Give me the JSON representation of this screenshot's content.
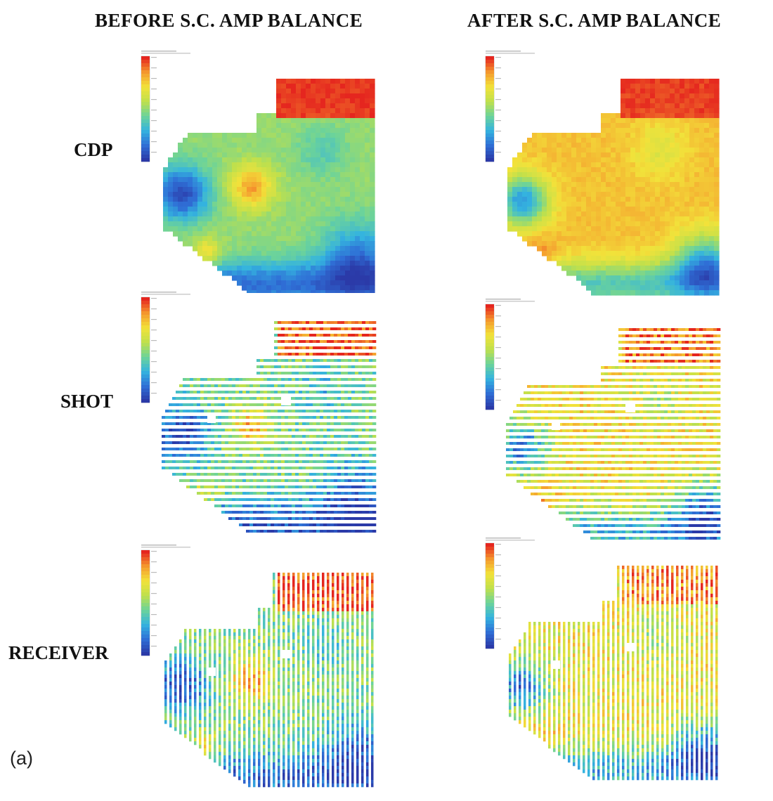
{
  "titles": {
    "before": "BEFORE S.C. AMP BALANCE",
    "after": "AFTER S.C. AMP BALANCE"
  },
  "rows": [
    {
      "key": "cdp",
      "label": "CDP"
    },
    {
      "key": "shot",
      "label": "SHOT"
    },
    {
      "key": "receiver",
      "label": "RECEIVER"
    }
  ],
  "panel_tag": "(a)",
  "colors": {
    "colormap": [
      "#2b3aa8",
      "#2f6fd6",
      "#34b3df",
      "#6cd39a",
      "#bfe04c",
      "#f2e23a",
      "#f59a2e",
      "#e5261f"
    ]
  }
}
